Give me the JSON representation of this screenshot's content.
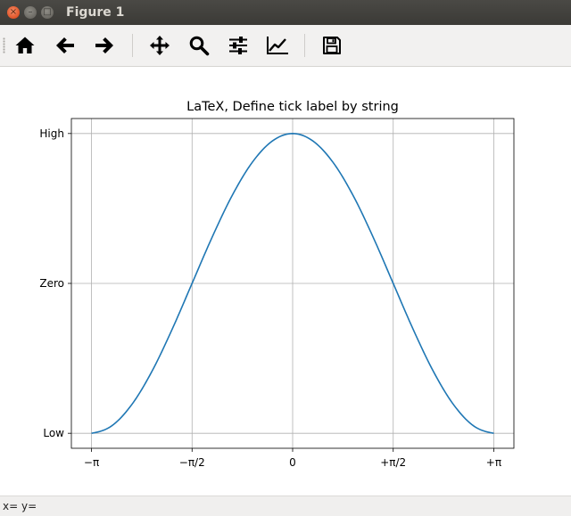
{
  "window": {
    "title": "Figure 1",
    "close_glyph": "×",
    "min_glyph": "–",
    "max_glyph": "□"
  },
  "toolbar": {
    "buttons": [
      {
        "name": "home-icon"
      },
      {
        "name": "back-arrow-icon"
      },
      {
        "name": "forward-arrow-icon"
      },
      {
        "name": "pan-move-icon"
      },
      {
        "name": "zoom-icon"
      },
      {
        "name": "configure-subplots-icon"
      },
      {
        "name": "edit-axis-icon"
      },
      {
        "name": "save-icon"
      }
    ]
  },
  "status": {
    "coords": "x= y="
  },
  "colors": {
    "line": "#1f77b4",
    "grid": "#b0b0b0",
    "axes": "#000000"
  },
  "chart_data": {
    "type": "line",
    "title": "LaTeX, Define tick label by string",
    "xlim": [
      -3.4558,
      3.4558
    ],
    "ylim": [
      -1.1,
      1.1
    ],
    "xticks": [
      -3.14159,
      -1.5708,
      0,
      1.5708,
      3.14159
    ],
    "xticklabels": [
      "−π",
      "−π/2",
      "0",
      "+π/2",
      "+π"
    ],
    "yticks": [
      -1,
      0,
      1
    ],
    "yticklabels": [
      "Low",
      "Zero",
      "High"
    ],
    "grid": true,
    "series": [
      {
        "function": "cos(x)",
        "x": [
          -3.14159,
          -2.8274,
          -2.5133,
          -2.1991,
          -1.885,
          -1.5708,
          -1.2566,
          -0.9425,
          -0.6283,
          -0.3142,
          0,
          0.3142,
          0.6283,
          0.9425,
          1.2566,
          1.5708,
          1.885,
          2.1991,
          2.5133,
          2.8274,
          3.14159
        ],
        "y": [
          -1,
          -0.951,
          -0.809,
          -0.588,
          -0.309,
          0,
          0.309,
          0.588,
          0.809,
          0.951,
          1,
          0.951,
          0.809,
          0.588,
          0.309,
          0,
          -0.309,
          -0.588,
          -0.809,
          -0.951,
          -1
        ]
      }
    ]
  }
}
